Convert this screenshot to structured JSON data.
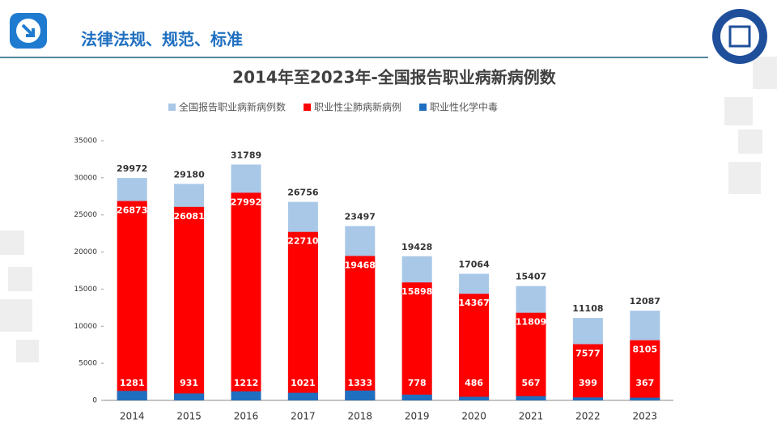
{
  "header": {
    "title": "法律法规、规范、标准"
  },
  "chart_data": {
    "type": "bar",
    "title": "2014年至2023年-全国报告职业病新病例数",
    "categories": [
      "2014",
      "2015",
      "2016",
      "2017",
      "2018",
      "2019",
      "2020",
      "2021",
      "2022",
      "2023"
    ],
    "series": [
      {
        "name": "全国报告职业病新病例数",
        "color": "#a9c8e8",
        "values": [
          29972,
          29180,
          31789,
          26756,
          23497,
          19428,
          17064,
          15407,
          11108,
          12087
        ]
      },
      {
        "name": "职业性尘肺病新病例",
        "color": "#ff0000",
        "values": [
          26873,
          26081,
          27992,
          22710,
          19468,
          15898,
          14367,
          11809,
          7577,
          8105
        ]
      },
      {
        "name": "职业性化学中毒",
        "color": "#1f6fc0",
        "values": [
          1281,
          931,
          1212,
          1021,
          1333,
          778,
          486,
          567,
          399,
          367
        ]
      }
    ],
    "ylim": [
      0,
      35000
    ],
    "yticks": [
      0,
      5000,
      10000,
      15000,
      20000,
      25000,
      30000,
      35000
    ],
    "grid": false
  }
}
